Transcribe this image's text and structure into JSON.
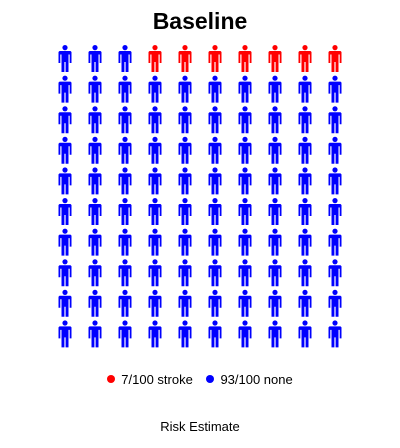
{
  "chart_data": {
    "type": "pictograph",
    "title": "Baseline",
    "xlabel": "Risk Estimate",
    "total": 100,
    "rows": 10,
    "columns": 10,
    "series": [
      {
        "name": "stroke",
        "count": 7,
        "color": "#ff0000",
        "legend_label": "7/100 stroke"
      },
      {
        "name": "none",
        "count": 93,
        "color": "#0000ff",
        "legend_label": "93/100 none"
      }
    ],
    "highlight_order": "top row, right to left"
  }
}
